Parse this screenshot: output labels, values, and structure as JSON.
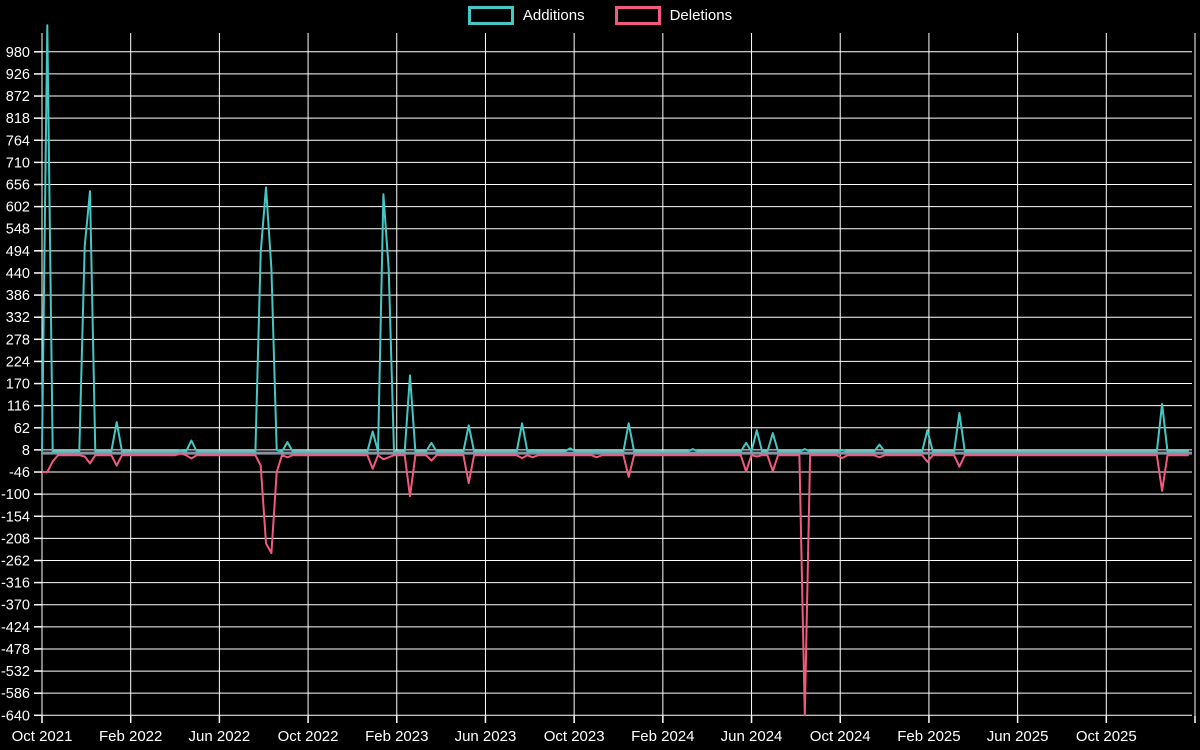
{
  "legend": {
    "items": [
      {
        "label": "Additions",
        "color": "#45c7c3"
      },
      {
        "label": "Deletions",
        "color": "#f2597f"
      }
    ]
  },
  "chart_data": {
    "type": "line",
    "title": "",
    "xlabel": "",
    "ylabel": "",
    "legend_position": "top-center",
    "background": "#000000",
    "grid_color": "#ffffff",
    "zero_line_color": "#8593a3",
    "text_color": "#ffffff",
    "colors": {
      "additions": "#45c7c3",
      "deletions": "#f2597f"
    },
    "grid": true,
    "x_ticks": [
      "Oct 2021",
      "Feb 2022",
      "Jun 2022",
      "Oct 2022",
      "Feb 2023",
      "Jun 2023",
      "Oct 2023",
      "Feb 2024",
      "Jun 2024",
      "Oct 2024",
      "Feb 2025",
      "Jun 2025",
      "Oct 2025"
    ],
    "y_ticks": [
      980,
      926,
      872,
      818,
      764,
      710,
      656,
      602,
      548,
      494,
      440,
      386,
      332,
      278,
      224,
      170,
      116,
      62,
      8,
      -46,
      -100,
      -154,
      -208,
      -262,
      -316,
      -370,
      -424,
      -478,
      -532,
      -586,
      -640
    ],
    "ylim": [
      -660,
      1050
    ],
    "x_range": [
      "2021-10-03",
      "2025-11-23"
    ],
    "weeks_total": 216,
    "start_week": "2021-10-03",
    "baseline": {
      "additions": 4,
      "deletions": -5
    },
    "series": [
      {
        "name": "Additions",
        "key": "additions"
      },
      {
        "name": "Deletions",
        "key": "deletions"
      }
    ],
    "events": [
      {
        "week": 0,
        "date": "2021-10-03",
        "additions": 4,
        "deletions": -46
      },
      {
        "week": 1,
        "date": "2021-10-10",
        "additions": 1045,
        "deletions": -46
      },
      {
        "week": 2,
        "date": "2021-10-17",
        "additions": 4,
        "deletions": -20
      },
      {
        "week": 8,
        "date": "2021-11-28",
        "additions": 505,
        "deletions": -8
      },
      {
        "week": 9,
        "date": "2021-12-05",
        "additions": 640,
        "deletions": -25
      },
      {
        "week": 14,
        "date": "2022-01-09",
        "additions": 76,
        "deletions": -30
      },
      {
        "week": 26,
        "date": "2022-04-03",
        "additions": 6,
        "deletions": -1
      },
      {
        "week": 28,
        "date": "2022-04-17",
        "additions": 31,
        "deletions": -13
      },
      {
        "week": 41,
        "date": "2022-07-17",
        "additions": 490,
        "deletions": -30
      },
      {
        "week": 42,
        "date": "2022-07-24",
        "additions": 649,
        "deletions": -220
      },
      {
        "week": 43,
        "date": "2022-07-31",
        "additions": 451,
        "deletions": -244
      },
      {
        "week": 44,
        "date": "2022-08-07",
        "additions": 8,
        "deletions": -46
      },
      {
        "week": 46,
        "date": "2022-08-21",
        "additions": 27,
        "deletions": -10
      },
      {
        "week": 62,
        "date": "2022-12-11",
        "additions": 53,
        "deletions": -38
      },
      {
        "week": 64,
        "date": "2022-12-25",
        "additions": 632,
        "deletions": -15
      },
      {
        "week": 65,
        "date": "2023-01-01",
        "additions": 450,
        "deletions": -10
      },
      {
        "week": 69,
        "date": "2023-01-29",
        "additions": 190,
        "deletions": -105
      },
      {
        "week": 73,
        "date": "2023-02-26",
        "additions": 25,
        "deletions": -18
      },
      {
        "week": 80,
        "date": "2023-04-16",
        "additions": 68,
        "deletions": -73
      },
      {
        "week": 90,
        "date": "2023-06-25",
        "additions": 73,
        "deletions": -12
      },
      {
        "week": 92,
        "date": "2023-07-09",
        "additions": 5,
        "deletions": -10
      },
      {
        "week": 99,
        "date": "2023-08-27",
        "additions": 12,
        "deletions": -5
      },
      {
        "week": 104,
        "date": "2023-10-01",
        "additions": 5,
        "deletions": -10
      },
      {
        "week": 110,
        "date": "2023-11-12",
        "additions": 73,
        "deletions": -58
      },
      {
        "week": 122,
        "date": "2024-02-04",
        "additions": 10,
        "deletions": -5
      },
      {
        "week": 132,
        "date": "2024-04-14",
        "additions": 25,
        "deletions": -45
      },
      {
        "week": 134,
        "date": "2024-04-28",
        "additions": 56,
        "deletions": -8
      },
      {
        "week": 137,
        "date": "2024-05-19",
        "additions": 49,
        "deletions": -44
      },
      {
        "week": 143,
        "date": "2024-06-30",
        "additions": 10,
        "deletions": -640
      },
      {
        "week": 150,
        "date": "2024-08-18",
        "additions": 8,
        "deletions": -12
      },
      {
        "week": 157,
        "date": "2024-10-06",
        "additions": 21,
        "deletions": -10
      },
      {
        "week": 166,
        "date": "2024-12-08",
        "additions": 56,
        "deletions": -21
      },
      {
        "week": 172,
        "date": "2025-01-19",
        "additions": 98,
        "deletions": -33
      },
      {
        "week": 210,
        "date": "2025-10-12",
        "additions": 120,
        "deletions": -92
      }
    ]
  }
}
